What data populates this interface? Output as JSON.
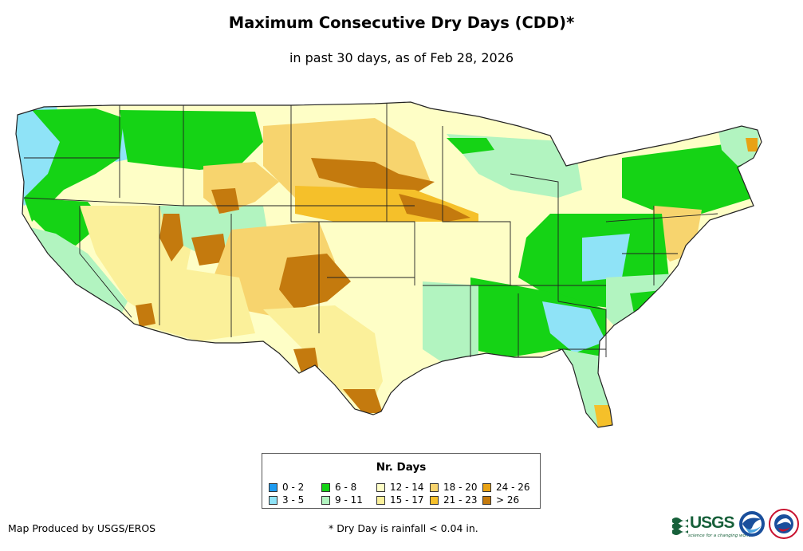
{
  "title": "Maximum Consecutive Dry Days (CDD)*",
  "subtitle": "in past 30 days, as of Feb 28, 2026",
  "legend": {
    "title": "Nr. Days",
    "items": [
      {
        "label": "0 - 2",
        "color": "#1e9bf0"
      },
      {
        "label": "3 - 5",
        "color": "#8fe3f7"
      },
      {
        "label": "6 - 8",
        "color": "#15d315"
      },
      {
        "label": "9 - 11",
        "color": "#b2f4c0"
      },
      {
        "label": "12 - 14",
        "color": "#fefec6"
      },
      {
        "label": "15 - 17",
        "color": "#fbf09a"
      },
      {
        "label": "18 - 20",
        "color": "#f7d46e"
      },
      {
        "label": "21 - 23",
        "color": "#f5c02a"
      },
      {
        "label": "24 - 26",
        "color": "#e8a214"
      },
      {
        "label": "> 26",
        "color": "#c47a0e"
      }
    ]
  },
  "credit": "Map Produced by USGS/EROS",
  "footnote": "* Dry Day is rainfall < 0.04 in.",
  "logos": {
    "usgs": "USGS",
    "usgs_tagline": "science for a changing world",
    "noaa_icon": "noaa-logo-icon",
    "nws_icon": "nws-logo-icon"
  }
}
